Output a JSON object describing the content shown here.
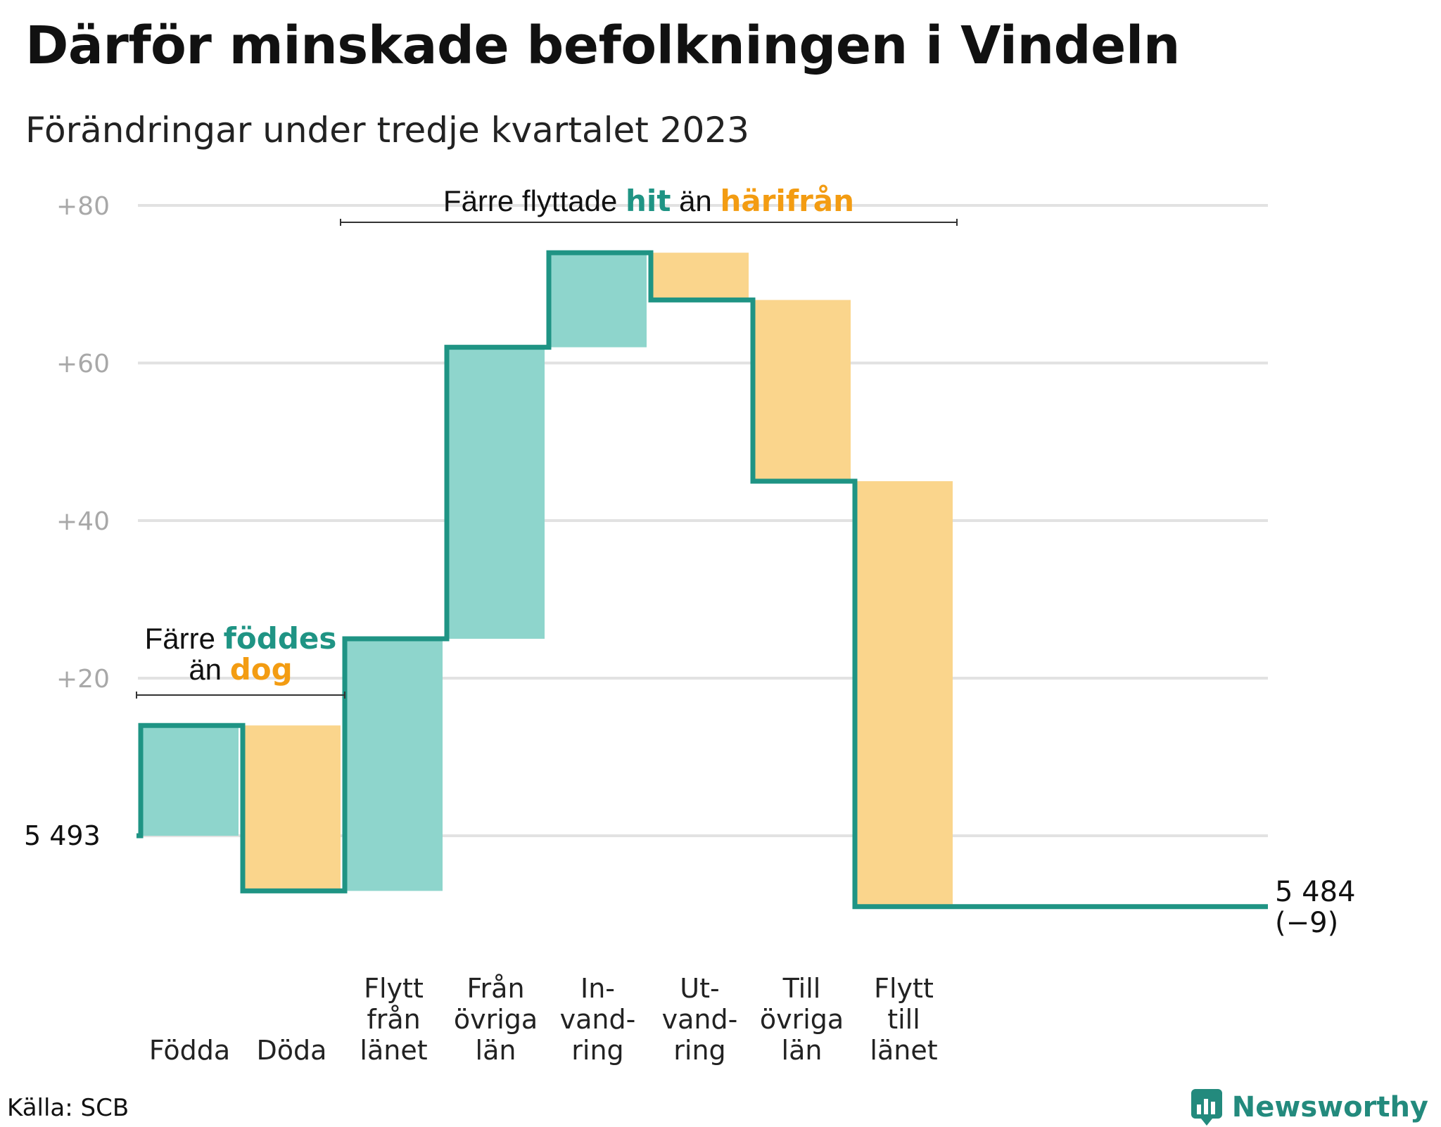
{
  "title": "Därför minskade befolkningen i Vindeln",
  "subtitle": "Förändringar under tredje kvartalet 2023",
  "source": "Källa: SCB",
  "brand": "Newsworthy",
  "colors": {
    "line": "#1f9484",
    "increase": "#8ed5cc",
    "decrease": "#fad58c",
    "increase_text": "#1f9484",
    "decrease_text": "#f39c12",
    "grid": "#e2e2e2",
    "tick": "#a8a8a8"
  },
  "chart_data": {
    "type": "waterfall",
    "start_label": "5  493",
    "end_label": "5 484",
    "end_change": "(−9)",
    "y_ticks": [
      "+20",
      "+40",
      "+60",
      "+80"
    ],
    "ylim": [
      -10,
      80
    ],
    "steps": [
      {
        "label": "Födda",
        "value": 14
      },
      {
        "label": "Döda",
        "value": -21
      },
      {
        "label": "Flytt från länet",
        "value": 32
      },
      {
        "label": "Från övriga län",
        "value": 37
      },
      {
        "label": "In- vand- ring",
        "value": 12
      },
      {
        "label": "Ut- vand- ring",
        "value": -6
      },
      {
        "label": "Till övriga län",
        "value": -23
      },
      {
        "label": "Flytt till länet",
        "value": -54
      }
    ],
    "category_label_lines": [
      [
        "Födda"
      ],
      [
        "Döda"
      ],
      [
        "Flytt",
        "från",
        "länet"
      ],
      [
        "Från",
        "övriga",
        "län"
      ],
      [
        "In-",
        "vand-",
        "ring"
      ],
      [
        "Ut-",
        "vand-",
        "ring"
      ],
      [
        "Till",
        "övriga",
        "län"
      ],
      [
        "Flytt",
        "till",
        "länet"
      ]
    ],
    "annotations": [
      {
        "span": [
          0,
          1
        ],
        "line1_pre": "Färre",
        "line1_word": "föddes",
        "line2_pre": "än",
        "line2_word": "dog"
      },
      {
        "span": [
          2,
          7
        ],
        "line1_pre": "Färre flyttade",
        "line1_word": "hit",
        "line2_pre": "än",
        "line2_word": "härifrån"
      }
    ]
  }
}
